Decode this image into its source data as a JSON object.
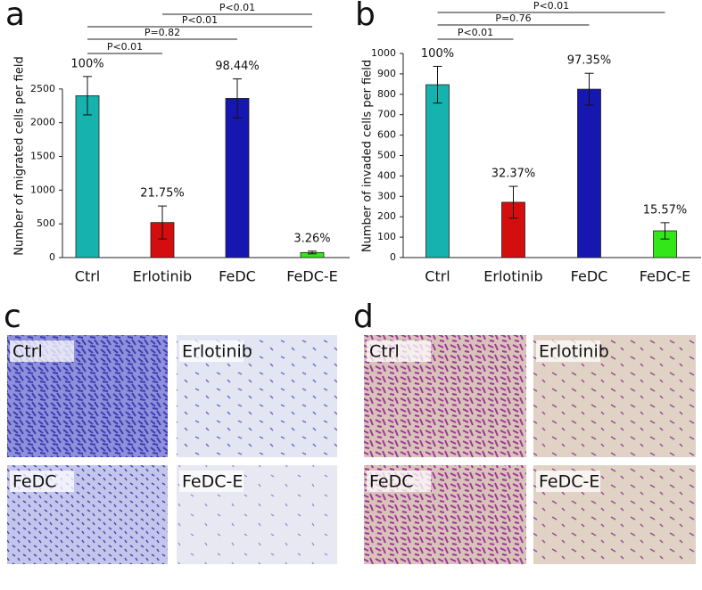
{
  "chart_data": [
    {
      "type": "bar",
      "panel_label": "a",
      "y_label": "Number of migrated cells per field",
      "categories": [
        "Ctrl",
        "Erlotinib",
        "FeDC",
        "FeDC-E"
      ],
      "values": [
        2400,
        520,
        2360,
        75
      ],
      "errors": [
        285,
        245,
        290,
        20
      ],
      "colors": [
        "#16b3ae",
        "#d40e0e",
        "#1616b0",
        "#33e61a"
      ],
      "percent_labels": [
        "100%",
        "21.75%",
        "98.44%",
        "3.26%"
      ],
      "brackets": [
        {
          "label": "P<0.01",
          "between": [
            0,
            1
          ]
        },
        {
          "label": "P=0.82",
          "between": [
            0,
            2
          ]
        },
        {
          "label": "P<0.01",
          "between": [
            0,
            3
          ]
        },
        {
          "label": "P<0.01",
          "between": [
            1,
            3
          ]
        }
      ],
      "ylim": [
        0,
        3000
      ],
      "yticks": [
        0,
        500,
        1000,
        1500,
        2000,
        2500
      ]
    },
    {
      "type": "bar",
      "panel_label": "b",
      "y_label": "Number of invaded cells per field",
      "categories": [
        "Ctrl",
        "Erlotinib",
        "FeDC",
        "FeDC-E"
      ],
      "values": [
        847,
        271,
        825,
        131
      ],
      "errors": [
        90,
        78,
        78,
        40
      ],
      "colors": [
        "#16b3ae",
        "#d40e0e",
        "#1616b0",
        "#33e61a"
      ],
      "percent_labels": [
        "100%",
        "32.37%",
        "97.35%",
        "15.57%"
      ],
      "brackets": [
        {
          "label": "P<0.01",
          "between": [
            0,
            1
          ]
        },
        {
          "label": "P=0.76",
          "between": [
            0,
            2
          ]
        },
        {
          "label": "P<0.01",
          "between": [
            0,
            3
          ]
        }
      ],
      "ylim": [
        0,
        1000
      ],
      "yticks": [
        0,
        100,
        200,
        300,
        400,
        500,
        600,
        700,
        800,
        900,
        1000
      ]
    }
  ],
  "images": [
    {
      "panel_label": "c",
      "tiles": [
        "Ctrl",
        "Erlotinib",
        "FeDC",
        "FeDC-E"
      ]
    },
    {
      "panel_label": "d",
      "tiles": [
        "Ctrl",
        "Erlotinib",
        "FeDC",
        "FeDC-E"
      ]
    }
  ]
}
